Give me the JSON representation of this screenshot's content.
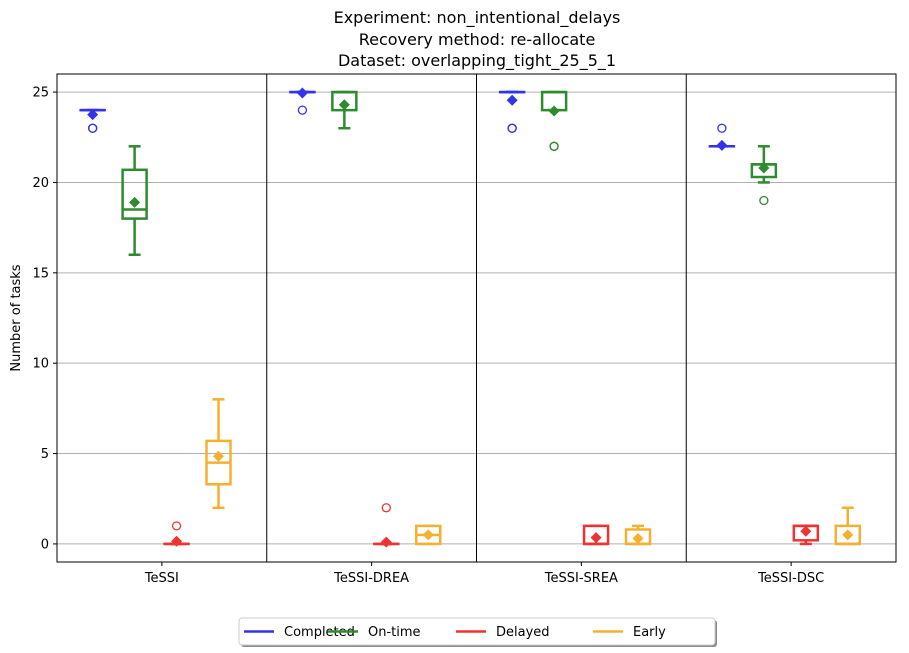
{
  "chart_data": {
    "type": "box",
    "title_lines": [
      "Experiment: non_intentional_delays",
      "Recovery method: re-allocate",
      "Dataset: overlapping_tight_25_5_1"
    ],
    "xlabel": "",
    "ylabel": "Number of tasks",
    "ylim": [
      -1,
      26
    ],
    "yticks": [
      0,
      5,
      10,
      15,
      20,
      25
    ],
    "grid": "horizontal",
    "legend_position": "bottom-center",
    "categories": [
      "TeSSI",
      "TeSSI-DREA",
      "TeSSI-SREA",
      "TeSSI-DSC"
    ],
    "series": [
      {
        "name": "Completed",
        "color": "#3333ee",
        "boxes": [
          {
            "q1": 24,
            "median": 24,
            "q3": 24,
            "whisker_low": 24,
            "whisker_high": 24,
            "mean": 23.75,
            "outliers": [
              23,
              23
            ]
          },
          {
            "q1": 25,
            "median": 25,
            "q3": 25,
            "whisker_low": 25,
            "whisker_high": 25,
            "mean": 24.95,
            "outliers": [
              24
            ]
          },
          {
            "q1": 25,
            "median": 25,
            "q3": 25,
            "whisker_low": 25,
            "whisker_high": 25,
            "mean": 24.55,
            "outliers": [
              23,
              23
            ]
          },
          {
            "q1": 22,
            "median": 22,
            "q3": 22,
            "whisker_low": 22,
            "whisker_high": 22,
            "mean": 22.05,
            "outliers": [
              23
            ]
          }
        ]
      },
      {
        "name": "On-time",
        "color": "#2e8b2e",
        "boxes": [
          {
            "q1": 18,
            "median": 18.5,
            "q3": 20.7,
            "whisker_low": 16,
            "whisker_high": 22,
            "mean": 18.9,
            "outliers": []
          },
          {
            "q1": 24,
            "median": 25,
            "q3": 25,
            "whisker_low": 23,
            "whisker_high": 25,
            "mean": 24.3,
            "outliers": []
          },
          {
            "q1": 24,
            "median": 25,
            "q3": 25,
            "whisker_low": 24,
            "whisker_high": 25,
            "mean": 23.95,
            "outliers": [
              22,
              22
            ]
          },
          {
            "q1": 20.3,
            "median": 21,
            "q3": 21,
            "whisker_low": 20,
            "whisker_high": 22,
            "mean": 20.8,
            "outliers": [
              19
            ]
          }
        ]
      },
      {
        "name": "Delayed",
        "color": "#ee3333",
        "boxes": [
          {
            "q1": 0,
            "median": 0,
            "q3": 0,
            "whisker_low": 0,
            "whisker_high": 0,
            "mean": 0.15,
            "outliers": [
              1
            ]
          },
          {
            "q1": 0,
            "median": 0,
            "q3": 0,
            "whisker_low": 0,
            "whisker_high": 0,
            "mean": 0.1,
            "outliers": [
              2
            ]
          },
          {
            "q1": 0,
            "median": 0,
            "q3": 1,
            "whisker_low": 0,
            "whisker_high": 1,
            "mean": 0.35,
            "outliers": []
          },
          {
            "q1": 0.2,
            "median": 1,
            "q3": 1,
            "whisker_low": 0,
            "whisker_high": 1,
            "mean": 0.7,
            "outliers": []
          }
        ]
      },
      {
        "name": "Early",
        "color": "#f5b030",
        "boxes": [
          {
            "q1": 3.3,
            "median": 4.5,
            "q3": 5.7,
            "whisker_low": 2,
            "whisker_high": 8,
            "mean": 4.85,
            "outliers": []
          },
          {
            "q1": 0,
            "median": 0.5,
            "q3": 1,
            "whisker_low": 0,
            "whisker_high": 1,
            "mean": 0.5,
            "outliers": []
          },
          {
            "q1": 0,
            "median": 0,
            "q3": 0.8,
            "whisker_low": 0,
            "whisker_high": 1,
            "mean": 0.3,
            "outliers": []
          },
          {
            "q1": 0,
            "median": 0,
            "q3": 1,
            "whisker_low": 0,
            "whisker_high": 2,
            "mean": 0.5,
            "outliers": []
          }
        ]
      }
    ]
  }
}
